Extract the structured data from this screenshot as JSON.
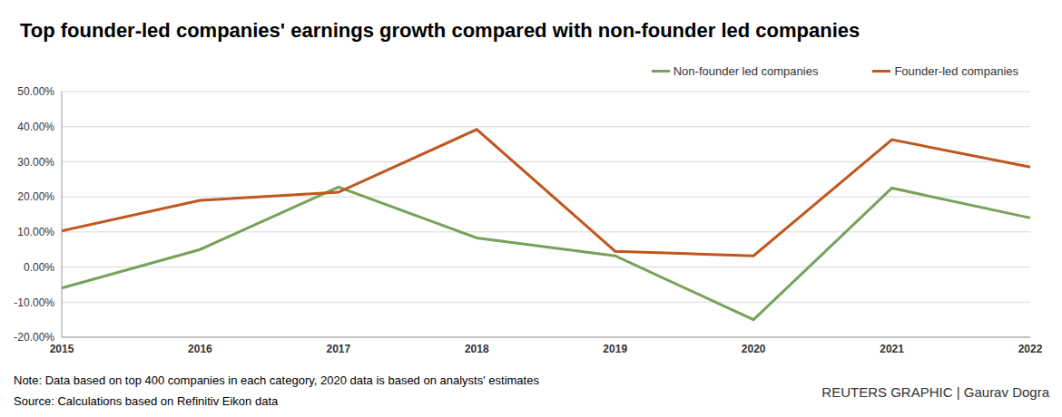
{
  "chart_data": {
    "type": "line",
    "title": "Top founder-led companies' earnings growth compared with non-founder led companies",
    "categories": [
      "2015",
      "2016",
      "2017",
      "2018",
      "2019",
      "2020",
      "2021",
      "2022"
    ],
    "series": [
      {
        "name": "Non-founder led companies",
        "color": "#77a25a",
        "values": [
          -6,
          5,
          22.8,
          8.3,
          3.2,
          -15,
          22.5,
          14
        ]
      },
      {
        "name": "Founder-led companies",
        "color": "#c0571f",
        "values": [
          10.3,
          19,
          21.3,
          39.2,
          4.5,
          3.2,
          36.3,
          28.5
        ]
      }
    ],
    "ylim": [
      -20,
      50
    ],
    "yticks": [
      {
        "value": -20,
        "label": "-20.00%"
      },
      {
        "value": -10,
        "label": "-10.00%"
      },
      {
        "value": 0,
        "label": "0.00%"
      },
      {
        "value": 10,
        "label": "10.00%"
      },
      {
        "value": 20,
        "label": "20.00%"
      },
      {
        "value": 30,
        "label": "30.00%"
      },
      {
        "value": 40,
        "label": "40.00%"
      },
      {
        "value": 50,
        "label": "50.00%"
      }
    ],
    "grid": true,
    "legend": "top-right",
    "notes": [
      "Note: Data based on top 400 companies in each category, 2020 data is based on analysts' estimates",
      "Source: Calculations based on Refinitiv Eikon data"
    ],
    "credit": "REUTERS GRAPHIC | Gaurav Dogra"
  }
}
